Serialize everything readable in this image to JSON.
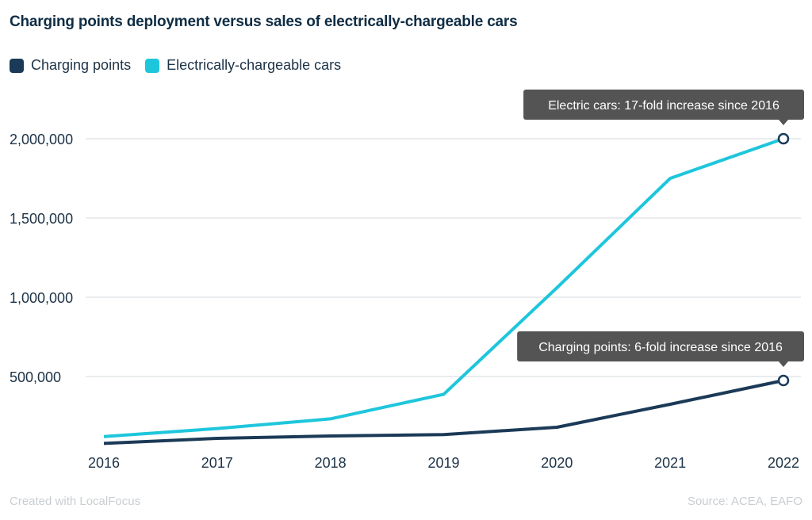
{
  "chart_data": {
    "type": "line",
    "title": "Charging points deployment versus sales of electrically-chargeable cars",
    "x": [
      "2016",
      "2017",
      "2018",
      "2019",
      "2020",
      "2021",
      "2022"
    ],
    "series": [
      {
        "name": "Charging points",
        "color": "#1b3a57",
        "values": [
          78000,
          110000,
          125000,
          134000,
          180000,
          325000,
          475000
        ]
      },
      {
        "name": "Electrically-chargeable cars",
        "color": "#1ec6dc",
        "values": [
          121000,
          172000,
          233000,
          388000,
          1060000,
          1750000,
          2000000
        ]
      }
    ],
    "yticks": [
      500000,
      1000000,
      1500000,
      2000000
    ],
    "ytick_labels": [
      "500,000",
      "1,000,000",
      "1,500,000",
      "2,000,000"
    ],
    "ylim": [
      0,
      2000000
    ],
    "grid": true,
    "legend": "top-left",
    "annotations": [
      {
        "series": 1,
        "x": "2022",
        "text": "Electric cars: 17-fold increase since 2016"
      },
      {
        "series": 0,
        "x": "2022",
        "text": "Charging points: 6-fold increase since 2016"
      }
    ]
  },
  "footer": {
    "credit": "Created with LocalFocus",
    "source": "Source:  ACEA, EAFO"
  }
}
